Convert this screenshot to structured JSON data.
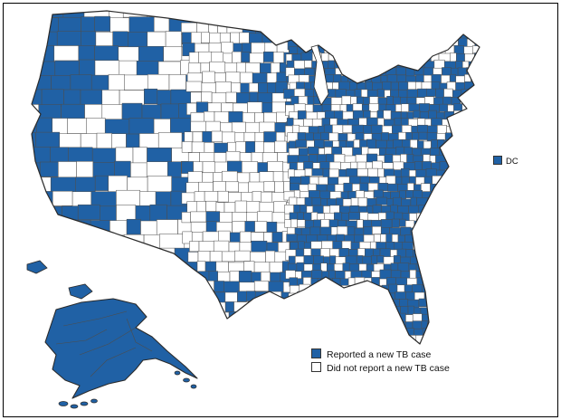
{
  "map": {
    "dc_label": "DC",
    "legend": {
      "items": [
        {
          "label": "Reported a new TB case",
          "swatch": "filled"
        },
        {
          "label": "Did not report a new TB case",
          "swatch": "empty"
        }
      ]
    },
    "colors": {
      "reported": "#2061a5",
      "not_reported": "#ffffff",
      "county_line": "#4d4d4d",
      "outline": "#2b2b2b",
      "frame": "#000000"
    }
  }
}
